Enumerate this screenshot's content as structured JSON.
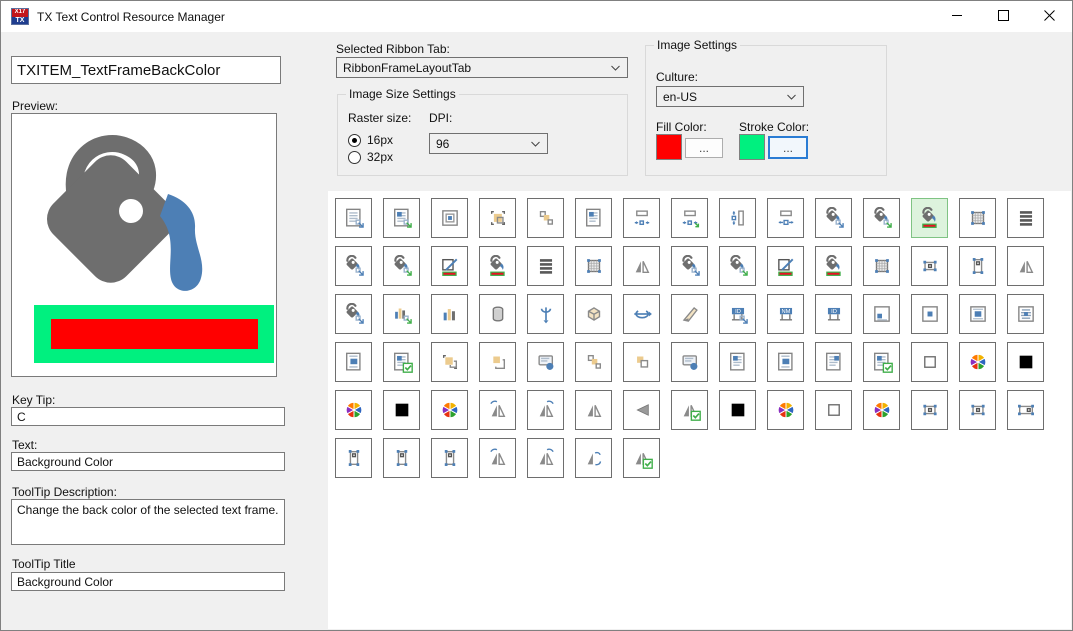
{
  "window": {
    "title": "TX Text Control Resource Manager",
    "app_icon": {
      "top": "X17",
      "bottom": "TX"
    }
  },
  "item": {
    "name": "TXITEM_TextFrameBackColor"
  },
  "preview": {
    "label": "Preview:"
  },
  "fields": {
    "key_tip_label": "Key Tip:",
    "key_tip": "C",
    "text_label": "Text:",
    "text": "Background Color",
    "tooltip_desc_label": "ToolTip Description:",
    "tooltip_desc": "Change the back color of the selected text frame.",
    "tooltip_title_label": "ToolTip Title",
    "tooltip_title": "Background Color"
  },
  "ribbon_tab": {
    "label": "Selected Ribbon Tab:",
    "value": "RibbonFrameLayoutTab"
  },
  "image_size": {
    "group_label": "Image Size Settings",
    "raster_label": "Raster size:",
    "dpi_label": "DPI:",
    "options": [
      {
        "label": "16px",
        "selected": true
      },
      {
        "label": "32px",
        "selected": false
      }
    ],
    "dpi_value": "96"
  },
  "image_settings": {
    "group_label": "Image Settings",
    "culture_label": "Culture:",
    "culture_value": "en-US",
    "fill_label": "Fill Color:",
    "stroke_label": "Stroke Color:",
    "fill_color": "#FF0000",
    "stroke_color": "#00F07F",
    "browse_label": "..."
  },
  "icon_grid": {
    "selected": {
      "row": 0,
      "col": 12
    },
    "sign_labels": {
      "id": "ID",
      "nm": "NM"
    },
    "rows": [
      [
        "frame-paste",
        "frame-apply",
        "frame-box",
        "square-bounds",
        "squares-arrange",
        "frame-text",
        "width-h",
        "width-h-apply",
        "height-v",
        "spacing-h",
        "bucket-paste",
        "bucket-apply",
        "bucket-backcolor",
        "hatch-frame",
        "text-lines"
      ],
      [
        "bucket-paste",
        "bucket-apply",
        "pen-bordercolor",
        "bucket-backcolor",
        "text-lines",
        "hatch-frame",
        "flip-shape",
        "bucket-paste",
        "bucket-apply",
        "pen-bordercolor",
        "bucket-backcolor",
        "hatch-frame",
        "anchor-h",
        "anchor-v",
        "flip-shape"
      ],
      [
        "bucket-paste",
        "chart-apply",
        "chart",
        "cylinder-3d",
        "rotate-y",
        "cube-3d",
        "rotate-x",
        "cone-3d",
        "sign-id-paste",
        "sign-nm",
        "sign-id",
        "frame-block-bl",
        "frame-block-center",
        "frame-block-fill",
        "frame-justify"
      ],
      [
        "frame-text-center",
        "frame-check",
        "square-forward",
        "square-backward",
        "callout-dot",
        "squares-arrange",
        "squares-two",
        "callout-dot",
        "frame-text",
        "frame-text-center",
        "frame-text-right",
        "frame-check",
        "white-square",
        "color-wheel",
        "black-square"
      ],
      [
        "color-wheel",
        "black-square",
        "color-wheel",
        "flip-left",
        "flip-right",
        "flip-shape",
        "triangle-left",
        "flip-check",
        "black-square",
        "color-wheel",
        "white-square",
        "color-wheel",
        "anchor-h",
        "anchor-h",
        "anchor-wide"
      ],
      [
        "anchor-v",
        "anchor-v",
        "anchor-v",
        "flip-left",
        "flip-right",
        "flip-s",
        "flip-check"
      ]
    ]
  }
}
